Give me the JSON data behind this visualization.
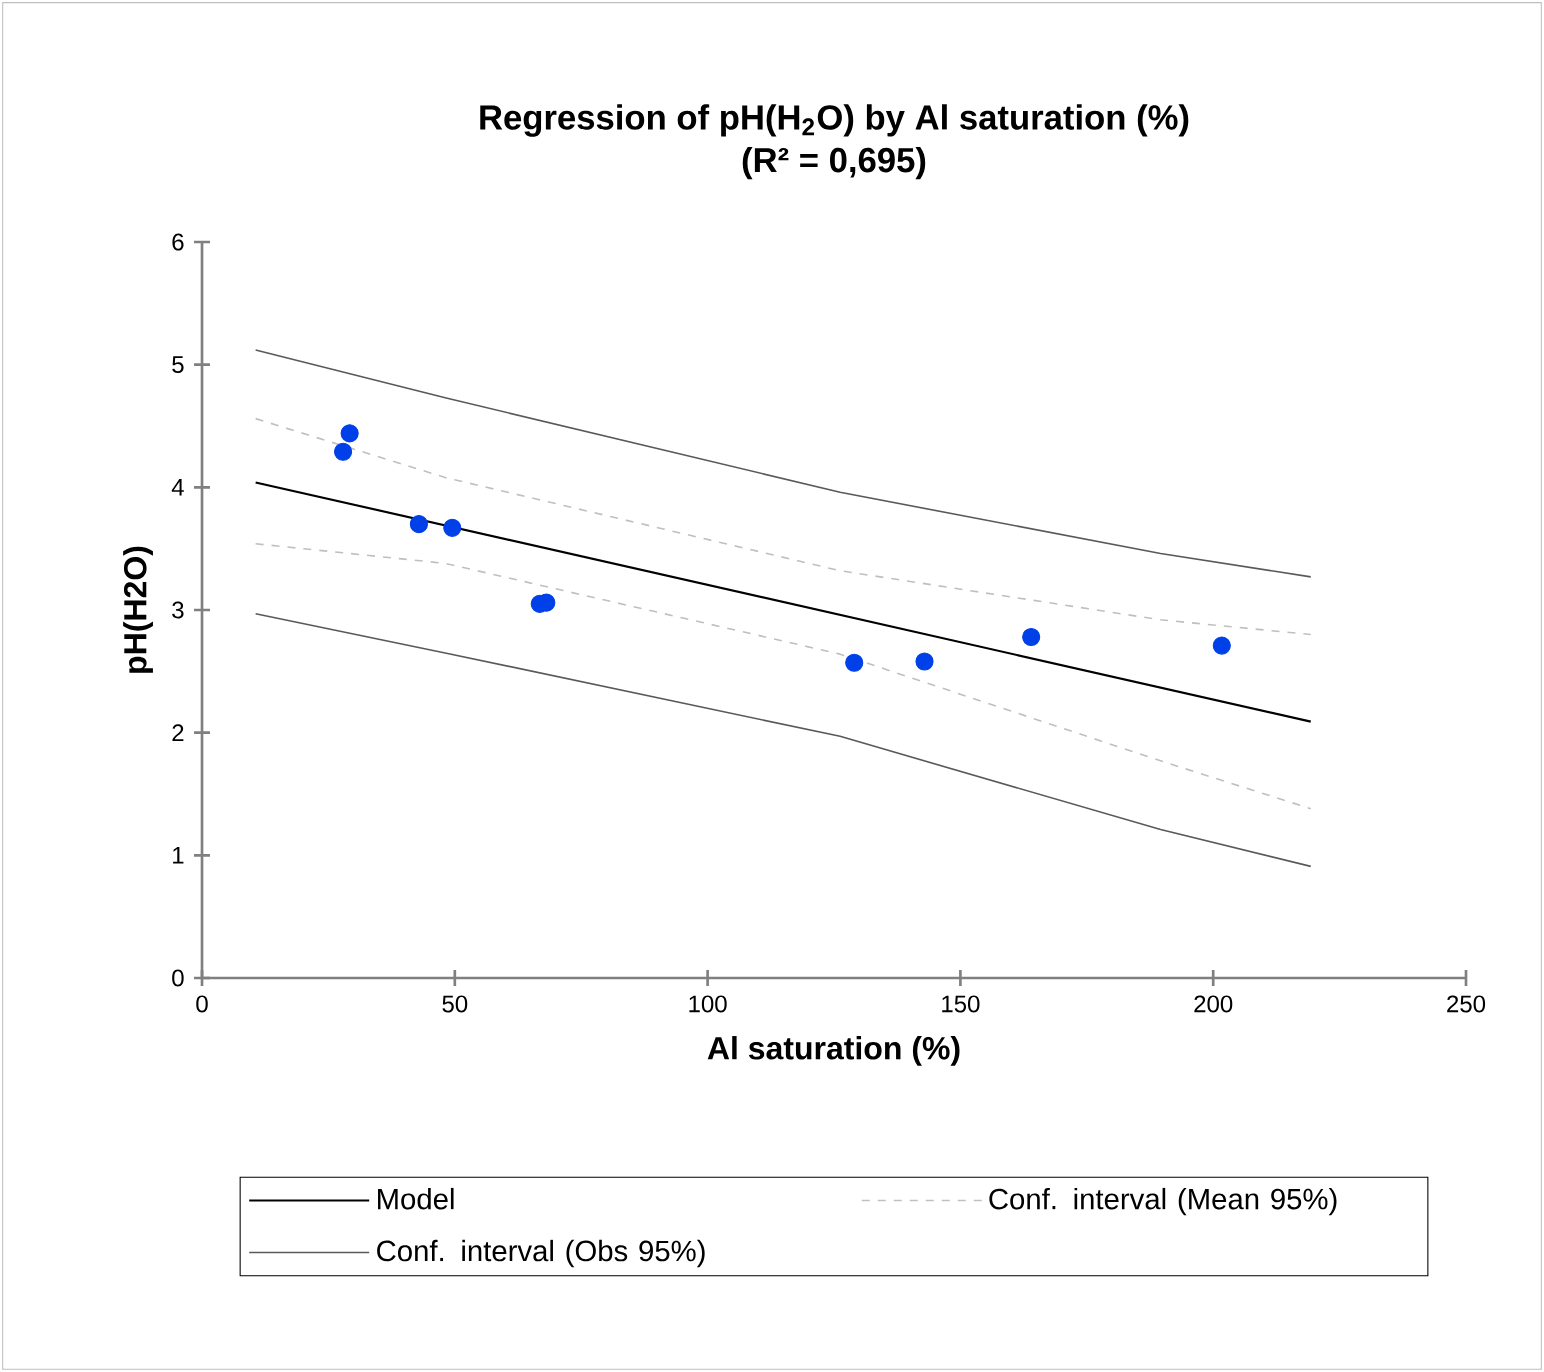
{
  "chart_data": {
    "type": "scatter",
    "title": "Regression of pH(H$_{2}$O) by Al saturation (%)",
    "subtitle": "(R² = 0,695)",
    "xlabel": "Al saturation (%)",
    "ylabel": "pH(H2O)",
    "xlim": [
      0,
      250
    ],
    "xticks": [
      0,
      50,
      100,
      150,
      200,
      250
    ],
    "ylim": [
      0,
      6
    ],
    "yticks": [
      0,
      1,
      2,
      3,
      4,
      5,
      6
    ],
    "legend": "bottom",
    "series": [
      {
        "marker": "circle",
        "color": "#0040e8",
        "x": [
          27.9,
          29.2,
          42.9,
          49.5,
          66.8,
          68.1,
          129.0,
          142.9,
          164.0,
          201.7
        ],
        "values": [
          4.29,
          4.44,
          3.7,
          3.67,
          3.05,
          3.06,
          2.57,
          2.58,
          2.78,
          2.71
        ]
      },
      {
        "type": "line",
        "name": "Model",
        "color": "#000000",
        "line_style": "solid",
        "marker": "none",
        "x": [
          10.6,
          219.3
        ],
        "values": [
          4.04,
          2.09
        ]
      },
      {
        "type": "line",
        "name": "Conf. interval (Mean 95%)",
        "color": "#bfbfbf",
        "line_style": "dashed",
        "marker": "none",
        "x": [
          10.6,
          48.1,
          126.2,
          189.6,
          219.3
        ],
        "values": [
          4.56,
          4.08,
          3.32,
          2.92,
          2.8
        ]
      },
      {
        "type": "line",
        "color": "#bfbfbf",
        "line_style": "dashed",
        "marker": "none",
        "x": [
          10.6,
          48.1,
          126.2,
          189.6,
          219.3
        ],
        "values": [
          3.54,
          3.38,
          2.64,
          1.77,
          1.38
        ]
      },
      {
        "type": "line",
        "name": "Conf. interval (Obs 95%)",
        "color": "#595959",
        "line_style": "solid",
        "marker": "none",
        "x": [
          10.6,
          48.1,
          126.2,
          189.6,
          219.3
        ],
        "values": [
          5.12,
          4.73,
          3.96,
          3.46,
          3.27
        ]
      },
      {
        "type": "line",
        "color": "#595959",
        "line_style": "solid",
        "marker": "none",
        "x": [
          10.6,
          48.1,
          126.2,
          189.6,
          219.3
        ],
        "values": [
          2.97,
          2.65,
          1.97,
          1.21,
          0.91
        ]
      }
    ]
  }
}
